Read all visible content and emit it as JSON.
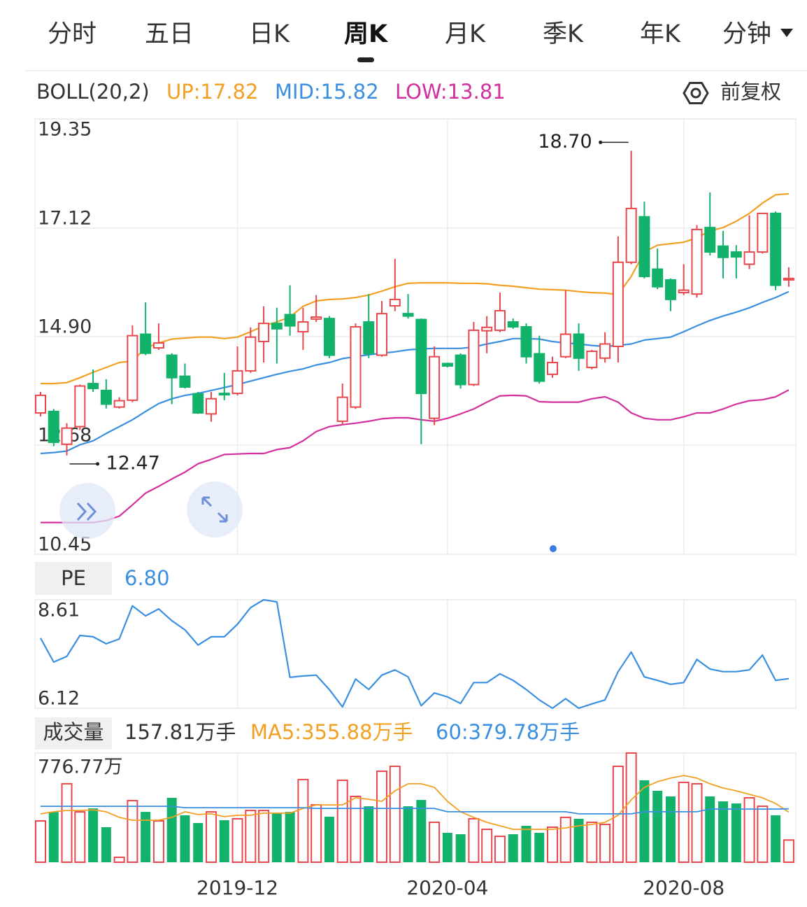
{
  "tabs": [
    "分时",
    "五日",
    "日K",
    "周K",
    "月K",
    "季K",
    "年K",
    "分钟"
  ],
  "active_tab": "周K",
  "adjust": "前复权",
  "chart_data": [
    {
      "type": "candlestick",
      "title": "BOLL(20,2)",
      "up_color": "#e8474c",
      "down_color": "#13b26a",
      "ohlc": [
        [
          13.34,
          13.77,
          13.27,
          13.7
        ],
        [
          13.37,
          13.42,
          12.66,
          12.74
        ],
        [
          12.7,
          13.13,
          12.47,
          13.03
        ],
        [
          13.06,
          13.92,
          12.99,
          13.89
        ],
        [
          13.94,
          14.23,
          13.77,
          13.84
        ],
        [
          13.8,
          14.03,
          13.43,
          13.52
        ],
        [
          13.46,
          13.66,
          13.43,
          13.59
        ],
        [
          13.6,
          15.13,
          13.56,
          14.92
        ],
        [
          14.95,
          15.6,
          14.52,
          14.56
        ],
        [
          14.67,
          15.17,
          14.63,
          14.77
        ],
        [
          14.52,
          14.56,
          13.52,
          14.06
        ],
        [
          14.09,
          14.35,
          13.84,
          13.87
        ],
        [
          13.73,
          13.77,
          13.32,
          13.34
        ],
        [
          13.32,
          13.77,
          13.16,
          13.63
        ],
        [
          13.74,
          14.16,
          13.6,
          13.72
        ],
        [
          13.74,
          14.7,
          13.7,
          14.2
        ],
        [
          14.2,
          15.09,
          14.16,
          14.89
        ],
        [
          14.8,
          15.52,
          14.37,
          15.17
        ],
        [
          15.17,
          15.49,
          14.35,
          15.06
        ],
        [
          15.35,
          15.95,
          14.92,
          15.12
        ],
        [
          15.0,
          15.49,
          14.63,
          15.2
        ],
        [
          15.26,
          15.75,
          15.2,
          15.3
        ],
        [
          15.27,
          15.32,
          14.46,
          14.52
        ],
        [
          13.17,
          13.94,
          13.09,
          13.66
        ],
        [
          13.46,
          15.17,
          13.42,
          15.1
        ],
        [
          15.2,
          15.77,
          14.46,
          14.55
        ],
        [
          14.52,
          15.63,
          14.49,
          15.37
        ],
        [
          15.53,
          16.49,
          15.42,
          15.66
        ],
        [
          15.37,
          15.77,
          15.27,
          15.32
        ],
        [
          15.25,
          15.27,
          12.7,
          13.74
        ],
        [
          13.23,
          14.7,
          13.09,
          14.49
        ],
        [
          14.35,
          14.37,
          14.27,
          14.3
        ],
        [
          14.52,
          14.56,
          13.84,
          13.92
        ],
        [
          13.92,
          15.2,
          13.89,
          15.03
        ],
        [
          15.02,
          15.32,
          14.56,
          15.09
        ],
        [
          15.03,
          15.8,
          14.99,
          15.43
        ],
        [
          15.2,
          15.27,
          15.06,
          15.1
        ],
        [
          15.1,
          15.17,
          14.35,
          14.49
        ],
        [
          14.55,
          14.92,
          13.94,
          13.99
        ],
        [
          14.13,
          14.49,
          14.06,
          14.37
        ],
        [
          14.49,
          15.85,
          14.46,
          14.95
        ],
        [
          14.95,
          15.17,
          14.2,
          14.46
        ],
        [
          14.27,
          14.63,
          14.23,
          14.6
        ],
        [
          14.46,
          14.99,
          14.37,
          14.75
        ],
        [
          14.7,
          16.95,
          14.37,
          16.42
        ],
        [
          16.42,
          18.7,
          16.38,
          17.52
        ],
        [
          17.35,
          17.66,
          16.09,
          16.13
        ],
        [
          16.28,
          16.7,
          15.87,
          15.92
        ],
        [
          16.06,
          16.09,
          15.42,
          15.66
        ],
        [
          15.8,
          16.38,
          15.75,
          15.85
        ],
        [
          15.77,
          17.18,
          15.7,
          17.09
        ],
        [
          17.13,
          17.85,
          16.56,
          16.63
        ],
        [
          16.75,
          17.06,
          16.09,
          16.52
        ],
        [
          16.63,
          16.77,
          16.09,
          16.53
        ],
        [
          16.38,
          17.38,
          16.28,
          16.63
        ],
        [
          16.63,
          17.42,
          16.6,
          17.42
        ],
        [
          17.42,
          17.46,
          15.85,
          15.95
        ],
        [
          16.06,
          16.32,
          15.92,
          16.09
        ]
      ],
      "series": [
        {
          "name": "UP:17.82",
          "color": "#f2a024",
          "values": [
            13.94,
            13.94,
            13.96,
            14.06,
            14.17,
            14.27,
            14.37,
            14.4,
            14.67,
            14.77,
            14.85,
            14.87,
            14.89,
            14.89,
            14.86,
            14.89,
            15.0,
            15.12,
            15.2,
            15.3,
            15.52,
            15.63,
            15.66,
            15.67,
            15.7,
            15.75,
            15.83,
            15.92,
            15.99,
            16.0,
            16.0,
            16.0,
            15.99,
            15.99,
            15.98,
            15.95,
            15.93,
            15.9,
            15.87,
            15.86,
            15.85,
            15.82,
            15.8,
            15.79,
            15.76,
            16.13,
            16.63,
            16.77,
            16.8,
            16.83,
            16.92,
            17.06,
            17.13,
            17.26,
            17.42,
            17.63,
            17.8,
            17.82
          ]
        },
        {
          "name": "MID:15.82",
          "color": "#3a8fe0",
          "values": [
            12.51,
            12.53,
            12.56,
            12.69,
            12.77,
            12.92,
            13.06,
            13.2,
            13.37,
            13.53,
            13.63,
            13.7,
            13.74,
            13.8,
            13.86,
            13.92,
            13.99,
            14.06,
            14.13,
            14.19,
            14.24,
            14.32,
            14.37,
            14.45,
            14.49,
            14.53,
            14.56,
            14.59,
            14.63,
            14.65,
            14.66,
            14.66,
            14.66,
            14.69,
            14.75,
            14.8,
            14.86,
            14.86,
            14.85,
            14.8,
            14.77,
            14.75,
            14.72,
            14.7,
            14.72,
            14.75,
            14.83,
            14.86,
            14.89,
            15.0,
            15.12,
            15.23,
            15.32,
            15.4,
            15.49,
            15.6,
            15.7,
            15.82
          ]
        },
        {
          "name": "LOW:13.81",
          "color": "#d2309e",
          "values": [
            11.1,
            11.1,
            11.1,
            11.1,
            11.1,
            11.14,
            11.23,
            11.46,
            11.7,
            11.84,
            11.99,
            12.13,
            12.3,
            12.39,
            12.49,
            12.5,
            12.51,
            12.51,
            12.59,
            12.63,
            12.77,
            12.96,
            13.06,
            13.1,
            13.13,
            13.17,
            13.22,
            13.24,
            13.24,
            13.2,
            13.17,
            13.23,
            13.32,
            13.42,
            13.56,
            13.69,
            13.7,
            13.69,
            13.57,
            13.56,
            13.56,
            13.56,
            13.63,
            13.67,
            13.56,
            13.34,
            13.23,
            13.2,
            13.2,
            13.26,
            13.34,
            13.34,
            13.42,
            13.52,
            13.59,
            13.61,
            13.67,
            13.81
          ]
        }
      ],
      "ylim": [
        10.45,
        19.35
      ],
      "yticks": [
        10.45,
        12.68,
        {
          "value": 14.9,
          "label": "14.90"
        },
        17.12,
        19.35
      ],
      "annotations": [
        {
          "label": "18.70",
          "value": 18.7
        },
        {
          "label": "12.47",
          "value": 12.47
        }
      ]
    },
    {
      "type": "line",
      "title": "PE",
      "subtitle": "6.80",
      "color": "#3a8fe0",
      "values": [
        7.73,
        7.18,
        7.31,
        7.79,
        7.76,
        7.6,
        7.71,
        8.47,
        8.24,
        8.4,
        8.13,
        7.92,
        7.57,
        7.76,
        7.76,
        8.05,
        8.43,
        8.61,
        8.56,
        6.83,
        6.86,
        6.88,
        6.55,
        6.15,
        6.79,
        6.55,
        6.88,
        7.0,
        6.84,
        6.18,
        6.47,
        6.38,
        6.23,
        6.71,
        6.71,
        6.91,
        6.76,
        6.55,
        6.31,
        6.12,
        6.34,
        6.12,
        6.22,
        6.31,
        6.96,
        7.41,
        6.84,
        6.76,
        6.67,
        6.71,
        7.24,
        7.02,
        6.96,
        6.96,
        7.0,
        7.34,
        6.76,
        6.8
      ],
      "ylim": [
        6.12,
        8.61
      ],
      "yticks": [
        6.12,
        8.61
      ]
    },
    {
      "type": "bar",
      "title": "成交量",
      "subtitle": "157.81万手",
      "categories": [
        null,
        null,
        null,
        null,
        null,
        null,
        null,
        null,
        null,
        null,
        null,
        null,
        null,
        null,
        null,
        "2019-12",
        null,
        null,
        null,
        null,
        null,
        null,
        null,
        null,
        null,
        null,
        null,
        null,
        null,
        null,
        null,
        "2020-04",
        null,
        null,
        null,
        null,
        null,
        null,
        null,
        null,
        null,
        null,
        null,
        null,
        null,
        null,
        null,
        null,
        null,
        "2020-08",
        null,
        null,
        null,
        null,
        null,
        null,
        null,
        null
      ],
      "values": [
        294,
        358,
        558,
        358,
        383,
        249,
        35,
        438,
        358,
        294,
        458,
        334,
        279,
        358,
        299,
        309,
        368,
        368,
        349,
        358,
        588,
        408,
        324,
        583,
        468,
        398,
        647,
        682,
        398,
        443,
        284,
        209,
        199,
        309,
        234,
        184,
        199,
        259,
        209,
        249,
        319,
        309,
        284,
        269,
        682,
        776.77,
        583,
        508,
        468,
        568,
        558,
        468,
        433,
        418,
        458,
        398,
        334,
        157.81
      ],
      "series": [
        {
          "name": "MA5:355.88万手",
          "color": "#f2a024",
          "values": [
            344,
            359,
            368,
            368,
            373,
            359,
            319,
            299,
            299,
            299,
            319,
            359,
            339,
            344,
            324,
            334,
            334,
            349,
            349,
            349,
            383,
            408,
            408,
            408,
            458,
            448,
            433,
            508,
            558,
            558,
            533,
            433,
            359,
            319,
            284,
            259,
            234,
            234,
            234,
            234,
            244,
            259,
            269,
            284,
            334,
            443,
            533,
            573,
            598,
            617,
            598,
            558,
            528,
            508,
            483,
            458,
            418,
            355.88
          ]
        },
        {
          "name": "60:379.78万手",
          "color": "#3a8fe0",
          "values": [
            398,
            398,
            398,
            398,
            398,
            398,
            398,
            398,
            398,
            398,
            398,
            388,
            388,
            388,
            388,
            388,
            388,
            388,
            388,
            388,
            388,
            383,
            383,
            383,
            383,
            383,
            383,
            383,
            383,
            383,
            383,
            359,
            359,
            359,
            359,
            359,
            359,
            359,
            359,
            359,
            359,
            344,
            344,
            344,
            344,
            344,
            359,
            359,
            359,
            359,
            359,
            378,
            378,
            378,
            378,
            378,
            378,
            379.78
          ]
        }
      ],
      "ylim": [
        0,
        776.77
      ],
      "yticks": [
        {
          "value": 776.77,
          "label": "776.77万"
        }
      ]
    }
  ]
}
